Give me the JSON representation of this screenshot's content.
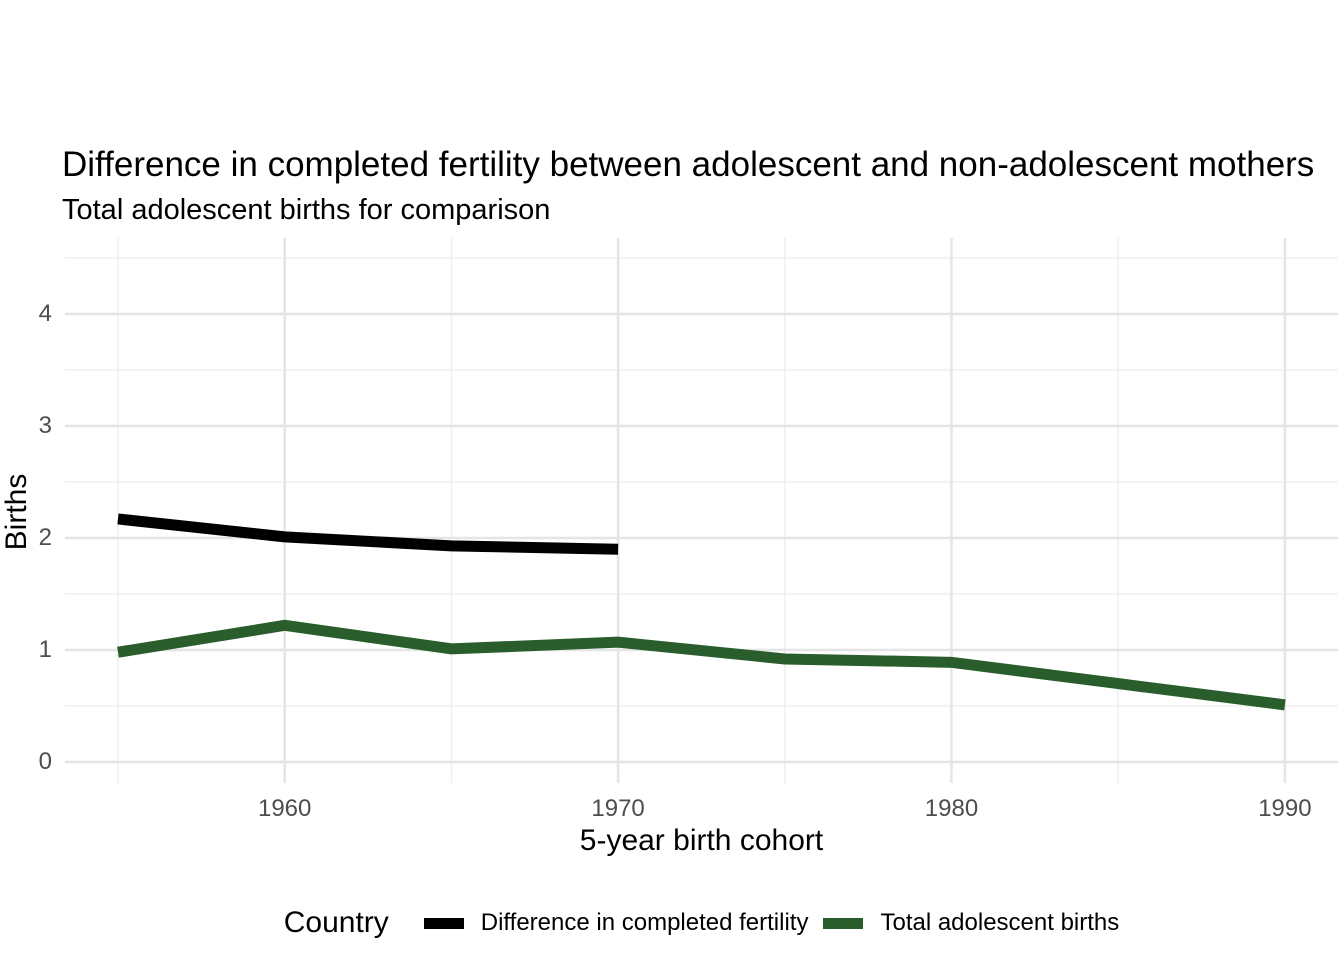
{
  "title": "Difference in completed fertility between adolescent and non-adolescent mothers",
  "subtitle": "Total adolescent births for comparison",
  "chart_data": {
    "type": "line",
    "title": "Difference in completed fertility between adolescent and non-adolescent mothers",
    "subtitle": "Total adolescent births for comparison",
    "xlabel": "5-year birth cohort",
    "ylabel": "Births",
    "xlim": [
      1953.4,
      1991.6
    ],
    "ylim": [
      -0.1,
      4.68
    ],
    "x_ticks": [
      1960,
      1970,
      1980,
      1990
    ],
    "x_minor_gridlines": [
      1955,
      1965,
      1975,
      1985
    ],
    "y_ticks": [
      0,
      1,
      2,
      3,
      4
    ],
    "y_minor_gridlines": [
      0.5,
      1.5,
      2.5,
      3.5,
      4.5
    ],
    "grid": true,
    "legend_position": "bottom",
    "legend_title": "Country",
    "series": [
      {
        "name": "Difference in completed fertility",
        "color": "#000000",
        "x": [
          1955,
          1960,
          1965,
          1970
        ],
        "y": [
          2.17,
          2.01,
          1.93,
          1.9
        ]
      },
      {
        "name": "Total adolescent births",
        "color": "#2A5D2C",
        "x": [
          1955,
          1960,
          1965,
          1970,
          1975,
          1980,
          1985,
          1990
        ],
        "y": [
          0.98,
          1.22,
          1.01,
          1.07,
          0.92,
          0.89,
          0.7,
          0.51
        ]
      }
    ]
  },
  "colors": {
    "background": "#FFFFFF",
    "grid_major": "#E5E5E5",
    "grid_minor": "#EFEFEF",
    "axis_text": "#4D4D4D",
    "text": "#000000",
    "series_black": "#000000",
    "series_green": "#2A5D2C"
  }
}
